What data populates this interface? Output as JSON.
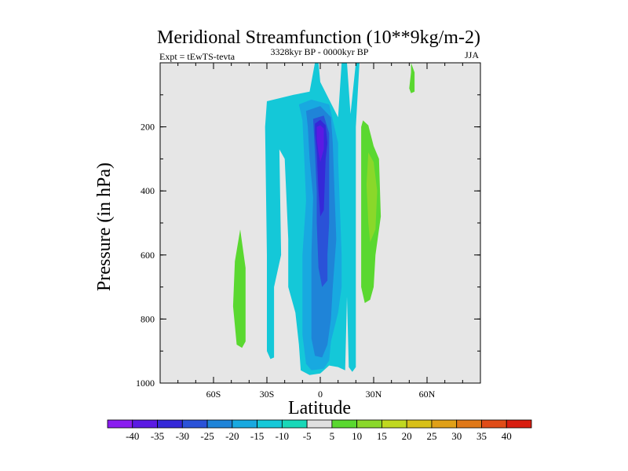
{
  "chart_data": {
    "type": "contour",
    "title": "Meridional Streamfunction (10**9kg/m-2)",
    "left_label": "Expt = tEwTS-tevta",
    "center_label": "3328kyr BP - 0000kyr BP",
    "right_label": "JJA",
    "xlabel": "Latitude",
    "ylabel": "Pressure (in hPa)",
    "xlim": [
      -90,
      90
    ],
    "ylim": [
      1000,
      0
    ],
    "xticks": [
      {
        "value": -60,
        "label": "60S"
      },
      {
        "value": -30,
        "label": "30S"
      },
      {
        "value": 0,
        "label": "0"
      },
      {
        "value": 30,
        "label": "30N"
      },
      {
        "value": 60,
        "label": "60N"
      }
    ],
    "yticks": [
      {
        "value": 200,
        "label": "200"
      },
      {
        "value": 400,
        "label": "400"
      },
      {
        "value": 600,
        "label": "600"
      },
      {
        "value": 800,
        "label": "800"
      },
      {
        "value": 1000,
        "label": "1000"
      }
    ],
    "background_color": "#e6e6e6",
    "colorbar": {
      "labels": [
        "-40",
        "-35",
        "-30",
        "-25",
        "-20",
        "-15",
        "-10",
        "-5",
        "5",
        "10",
        "15",
        "20",
        "25",
        "30",
        "35",
        "40"
      ],
      "colors": [
        "#8a1df0",
        "#5b1ae3",
        "#3528d8",
        "#2a52d8",
        "#1f84d8",
        "#18a9e0",
        "#14c8d8",
        "#18d8b8",
        "#e0e0e0",
        "#5ad830",
        "#8ad82a",
        "#c0d820",
        "#d8c018",
        "#e0a018",
        "#e07818",
        "#e04c18",
        "#d81e10"
      ]
    },
    "regions": [
      {
        "level": -10,
        "points": [
          [
            -30,
            120
          ],
          [
            -15,
            100
          ],
          [
            -6,
            90
          ],
          [
            -3,
            0
          ],
          [
            -1,
            0
          ],
          [
            0,
            60
          ],
          [
            10,
            170
          ],
          [
            12,
            0
          ],
          [
            15,
            0
          ],
          [
            17,
            160
          ],
          [
            20,
            0
          ],
          [
            22,
            0
          ],
          [
            20,
            200
          ],
          [
            20,
            950
          ],
          [
            18,
            965
          ],
          [
            16,
            950
          ],
          [
            15,
            730
          ],
          [
            14,
            960
          ],
          [
            10,
            950
          ],
          [
            5,
            945
          ],
          [
            0,
            970
          ],
          [
            -6,
            975
          ],
          [
            -11,
            960
          ],
          [
            -12,
            880
          ],
          [
            -14,
            780
          ],
          [
            -18,
            700
          ],
          [
            -18,
            550
          ],
          [
            -20,
            300
          ],
          [
            -23,
            270
          ],
          [
            -22,
            600
          ],
          [
            -26,
            700
          ],
          [
            -26,
            920
          ],
          [
            -28,
            925
          ],
          [
            -30,
            900
          ],
          [
            -30,
            600
          ],
          [
            -31,
            200
          ]
        ]
      },
      {
        "level": -15,
        "points": [
          [
            -12,
            130
          ],
          [
            -5,
            115
          ],
          [
            5,
            130
          ],
          [
            10,
            250
          ],
          [
            10,
            300
          ],
          [
            12,
            600
          ],
          [
            12,
            700
          ],
          [
            10,
            780
          ],
          [
            6,
            870
          ],
          [
            5,
            930
          ],
          [
            2,
            955
          ],
          [
            -5,
            960
          ],
          [
            -8,
            940
          ],
          [
            -10,
            850
          ],
          [
            -10,
            600
          ],
          [
            -8,
            430
          ],
          [
            -9,
            300
          ],
          [
            -10,
            180
          ]
        ]
      },
      {
        "level": -20,
        "points": [
          [
            -8,
            150
          ],
          [
            0,
            135
          ],
          [
            6,
            170
          ],
          [
            7,
            250
          ],
          [
            8,
            400
          ],
          [
            9,
            550
          ],
          [
            7,
            700
          ],
          [
            6,
            800
          ],
          [
            4,
            880
          ],
          [
            1,
            920
          ],
          [
            -3,
            915
          ],
          [
            -5,
            860
          ],
          [
            -5,
            600
          ],
          [
            -4,
            420
          ],
          [
            -6,
            300
          ],
          [
            -7,
            200
          ]
        ]
      },
      {
        "level": -25,
        "points": [
          [
            -4,
            175
          ],
          [
            2,
            165
          ],
          [
            5,
            220
          ],
          [
            5,
            300
          ],
          [
            5,
            500
          ],
          [
            4,
            600
          ],
          [
            4,
            680
          ],
          [
            1,
            700
          ],
          [
            -1,
            640
          ],
          [
            -2,
            500
          ],
          [
            -2,
            400
          ],
          [
            -3,
            280
          ]
        ]
      },
      {
        "level": -30,
        "points": [
          [
            -3,
            190
          ],
          [
            0,
            178
          ],
          [
            3,
            195
          ],
          [
            4,
            250
          ],
          [
            3,
            300
          ],
          [
            2,
            460
          ],
          [
            0,
            480
          ],
          [
            -1,
            400
          ],
          [
            -2,
            280
          ],
          [
            -3,
            220
          ]
        ]
      },
      {
        "level": -35,
        "points": [
          [
            -2,
            200
          ],
          [
            0,
            195
          ],
          [
            2,
            205
          ],
          [
            2,
            270
          ],
          [
            0,
            310
          ],
          [
            -1,
            280
          ],
          [
            -2,
            240
          ]
        ]
      },
      {
        "level": 5,
        "points": [
          [
            -45,
            520
          ],
          [
            -42,
            640
          ],
          [
            -42,
            870
          ],
          [
            -44,
            890
          ],
          [
            -47,
            880
          ],
          [
            -49,
            760
          ],
          [
            -48,
            620
          ]
        ]
      },
      {
        "level": 5,
        "points": [
          [
            24,
            180
          ],
          [
            27,
            195
          ],
          [
            30,
            260
          ],
          [
            33,
            300
          ],
          [
            34,
            480
          ],
          [
            31,
            600
          ],
          [
            30,
            700
          ],
          [
            28,
            740
          ],
          [
            25,
            750
          ],
          [
            23,
            700
          ],
          [
            23,
            300
          ],
          [
            23,
            200
          ]
        ]
      },
      {
        "level": 5,
        "points": [
          [
            51,
            0
          ],
          [
            53,
            30
          ],
          [
            53,
            90
          ],
          [
            51,
            95
          ],
          [
            50,
            80
          ],
          [
            51,
            30
          ]
        ]
      },
      {
        "level": 10,
        "points": [
          [
            27,
            280
          ],
          [
            30,
            310
          ],
          [
            32,
            400
          ],
          [
            31,
            520
          ],
          [
            28,
            560
          ],
          [
            27,
            500
          ],
          [
            26,
            380
          ]
        ]
      }
    ]
  }
}
